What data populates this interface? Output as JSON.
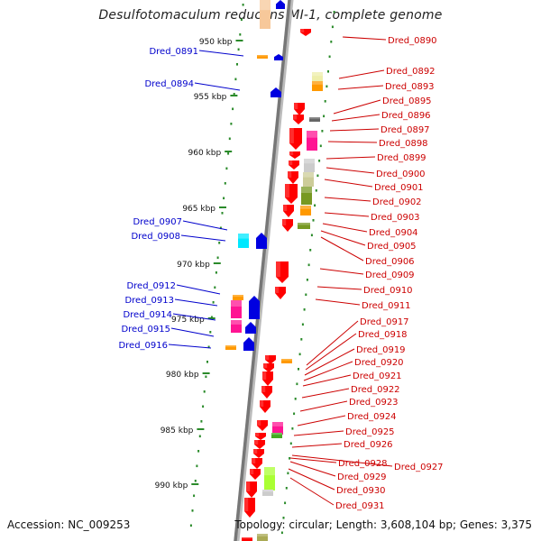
{
  "title": "Desulfotomaculum reducens MI-1, complete genome",
  "footer": {
    "accession": "Accession: NC_009253",
    "topology": "Topology: circular; Length: 3,608,104 bp; Genes: 3,375"
  },
  "colors": {
    "forward_label": "#0000cc",
    "reverse_label": "#cc0000",
    "ticks": "#2a8a2a",
    "backbone": "#888888"
  },
  "kbp_ticks": [
    "950 kbp",
    "955 kbp",
    "960 kbp",
    "965 kbp",
    "970 kbp",
    "975 kbp",
    "980 kbp",
    "985 kbp",
    "990 kbp"
  ],
  "forward_genes": [
    "Dred_0891",
    "Dred_0894",
    "Dred_0907",
    "Dred_0908",
    "Dred_0912",
    "Dred_0913",
    "Dred_0914",
    "Dred_0915",
    "Dred_0916"
  ],
  "reverse_genes": [
    "Dred_0890",
    "Dred_0892",
    "Dred_0893",
    "Dred_0895",
    "Dred_0896",
    "Dred_0897",
    "Dred_0898",
    "Dred_0899",
    "Dred_0900",
    "Dred_0901",
    "Dred_0902",
    "Dred_0903",
    "Dred_0904",
    "Dred_0905",
    "Dred_0906",
    "Dred_0909",
    "Dred_0910",
    "Dred_0911",
    "Dred_0917",
    "Dred_0918",
    "Dred_0919",
    "Dred_0920",
    "Dred_0921",
    "Dred_0922",
    "Dred_0923",
    "Dred_0924",
    "Dred_0925",
    "Dred_0926",
    "Dred_0927",
    "Dred_0928",
    "Dred_0929",
    "Dred_0930",
    "Dred_0931"
  ]
}
